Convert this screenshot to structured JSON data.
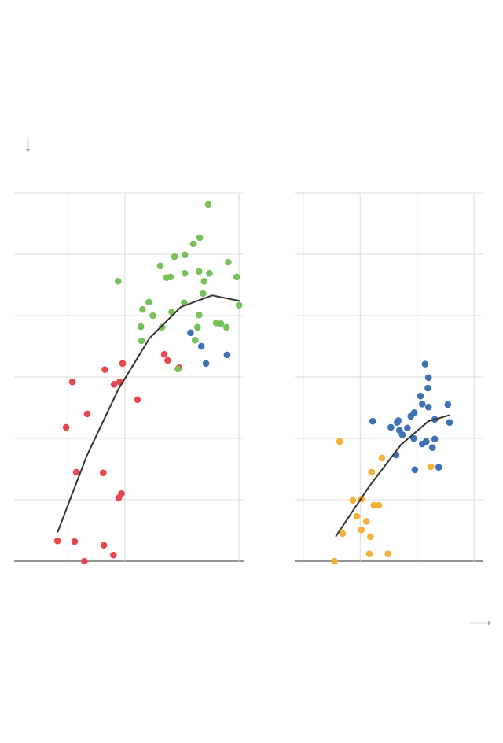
{
  "chart_data": [
    {
      "type": "scatter",
      "xlim": [
        0.06,
        4.08
      ],
      "ylim": [
        0,
        6
      ],
      "xticks": [
        1,
        2,
        3,
        4
      ],
      "yticks": [
        0,
        1,
        2,
        3,
        4,
        5,
        6
      ],
      "grid": true,
      "series": [
        {
          "color": "#e8474f",
          "x": [
            0.82,
            1.12,
            1.29,
            1.63,
            1.8,
            1.15,
            1.62,
            1.94,
            1.89,
            0.97,
            1.34,
            1.08,
            1.65,
            1.81,
            1.91,
            1.96,
            2.22,
            2.69,
            2.75,
            2.95
          ],
          "values": [
            0.33,
            0.32,
            0.0,
            0.26,
            0.1,
            1.45,
            1.44,
            1.1,
            1.03,
            2.18,
            2.4,
            2.92,
            3.12,
            2.88,
            2.92,
            3.22,
            2.63,
            3.37,
            3.27,
            3.15
          ]
        },
        {
          "color": "#77c05a",
          "x": [
            3.46,
            3.31,
            3.2,
            3.05,
            2.87,
            2.62,
            2.73,
            2.8,
            3.05,
            3.3,
            3.48,
            3.39,
            3.81,
            3.96,
            1.88,
            3.37,
            3.04,
            2.42,
            2.31,
            2.49,
            2.82,
            4.0,
            3.3,
            2.28,
            2.65,
            3.27,
            3.6,
            3.68,
            3.78,
            2.29,
            3.23,
            2.93
          ],
          "values": [
            5.81,
            5.27,
            5.17,
            4.99,
            4.96,
            4.81,
            4.62,
            4.63,
            4.69,
            4.72,
            4.69,
            4.56,
            4.87,
            4.63,
            4.56,
            4.36,
            4.21,
            4.22,
            4.1,
            4.0,
            4.06,
            4.17,
            4.01,
            3.82,
            3.81,
            3.81,
            3.88,
            3.87,
            3.81,
            3.59,
            3.6,
            3.13
          ]
        },
        {
          "color": "#3f72b5",
          "x": [
            3.15,
            3.34,
            3.42,
            3.79
          ],
          "values": [
            3.72,
            3.5,
            3.22,
            3.36
          ]
        }
      ],
      "line": {
        "color": "#333333",
        "x": [
          0.82,
          1.33,
          1.88,
          2.43,
          2.98,
          3.53,
          4.01
        ],
        "values": [
          0.47,
          1.71,
          2.79,
          3.63,
          4.14,
          4.33,
          4.24
        ]
      }
    },
    {
      "type": "scatter",
      "xlim": [
        0.85,
        4.15
      ],
      "ylim": [
        0,
        6
      ],
      "xticks": [
        1,
        2,
        3,
        4
      ],
      "yticks": [
        0,
        1,
        2,
        3,
        4,
        5,
        6
      ],
      "grid": true,
      "series": [
        {
          "color": "#3f72b5",
          "x": [
            3.14,
            3.2,
            3.19,
            3.06,
            3.09,
            3.2,
            3.54,
            2.95,
            2.89,
            3.31,
            3.57,
            2.22,
            2.65,
            2.67,
            2.54,
            2.69,
            2.74,
            2.83,
            2.94,
            3.09,
            3.16,
            3.31,
            3.27,
            2.63,
            2.96,
            3.38
          ],
          "values": [
            3.21,
            2.99,
            2.82,
            2.69,
            2.56,
            2.51,
            2.55,
            2.42,
            2.36,
            2.31,
            2.26,
            2.28,
            2.26,
            2.29,
            2.18,
            2.13,
            2.06,
            2.17,
            2.0,
            1.91,
            1.95,
            1.99,
            1.85,
            1.73,
            1.49,
            1.53
          ]
        },
        {
          "color": "#f5b035",
          "x": [
            1.64,
            2.38,
            2.2,
            3.24,
            1.87,
            2.02,
            2.24,
            2.33,
            1.94,
            2.11,
            2.02,
            2.18,
            1.69,
            2.16,
            2.49,
            1.55
          ],
          "values": [
            1.95,
            1.68,
            1.45,
            1.54,
            0.99,
            1.01,
            0.91,
            0.91,
            0.73,
            0.65,
            0.51,
            0.4,
            0.45,
            0.12,
            0.12,
            0.0
          ]
        }
      ],
      "line": {
        "color": "#333333",
        "x": [
          1.57,
          2.16,
          2.72,
          3.2,
          3.57
        ],
        "values": [
          0.4,
          1.22,
          1.9,
          2.28,
          2.38
        ]
      }
    }
  ]
}
